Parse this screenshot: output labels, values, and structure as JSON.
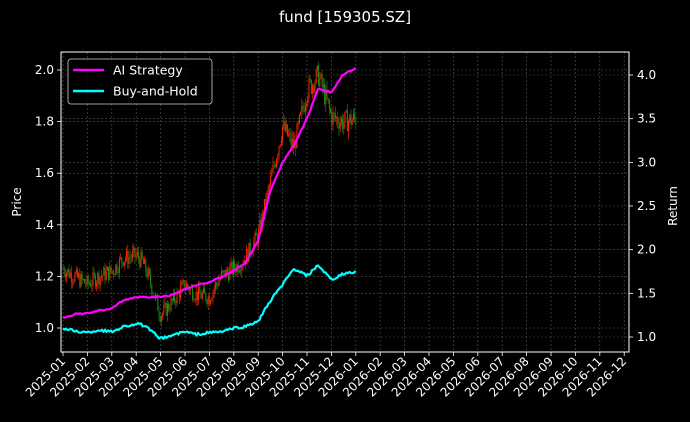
{
  "chart_data": {
    "type": "line",
    "title": "fund [159305.SZ]",
    "xlabel": "",
    "ylabel": "Price",
    "ylabel_right": "Return",
    "ylim": [
      0.91,
      2.07
    ],
    "ylim_right": [
      0.85,
      4.25
    ],
    "grid": true,
    "legend_position": "upper left",
    "x_ticks": [
      "2025-01",
      "2025-02",
      "2025-03",
      "2025-04",
      "2025-05",
      "2025-06",
      "2025-07",
      "2025-08",
      "2025-09",
      "2025-10",
      "2025-11",
      "2025-12",
      "2026-01",
      "2026-02",
      "2026-03",
      "2026-04",
      "2026-05",
      "2026-06",
      "2026-07",
      "2026-08",
      "2026-09",
      "2026-10",
      "2026-11",
      "2026-12"
    ],
    "y_ticks_left": [
      "1.0",
      "1.2",
      "1.4",
      "1.6",
      "1.8",
      "2.0"
    ],
    "y_ticks_right": [
      "1.0",
      "1.5",
      "2.0",
      "2.5",
      "3.0",
      "3.5",
      "4.0"
    ],
    "x": [
      "2025-01",
      "2025-01-15",
      "2025-02",
      "2025-02-15",
      "2025-03",
      "2025-03-15",
      "2025-04",
      "2025-04-08",
      "2025-04-15",
      "2025-05",
      "2025-05-15",
      "2025-06",
      "2025-06-15",
      "2025-07",
      "2025-07-15",
      "2025-08",
      "2025-08-15",
      "2025-09",
      "2025-09-15",
      "2025-10",
      "2025-10-15",
      "2025-11",
      "2025-11-15",
      "2025-12",
      "2025-12-15",
      "2026-01"
    ],
    "price_candles_approx_close": [
      1.23,
      1.2,
      1.17,
      1.2,
      1.22,
      1.27,
      1.28,
      1.26,
      1.21,
      1.05,
      1.1,
      1.17,
      1.13,
      1.12,
      1.2,
      1.23,
      1.27,
      1.36,
      1.55,
      1.78,
      1.7,
      1.92,
      1.98,
      1.82,
      1.8,
      1.81
    ],
    "series": [
      {
        "name": "AI Strategy",
        "axis": "right",
        "color": "#ff00ff",
        "values": [
          1.22,
          1.26,
          1.27,
          1.3,
          1.33,
          1.42,
          1.45,
          1.46,
          1.45,
          1.46,
          1.48,
          1.55,
          1.59,
          1.63,
          1.68,
          1.76,
          1.85,
          2.1,
          2.65,
          3.0,
          3.2,
          3.5,
          3.85,
          3.8,
          4.0,
          4.08
        ]
      },
      {
        "name": "Buy-and-Hold",
        "axis": "right",
        "color": "#00ffff",
        "values": [
          1.1,
          1.07,
          1.05,
          1.08,
          1.06,
          1.12,
          1.15,
          1.14,
          1.1,
          0.98,
          1.02,
          1.06,
          1.03,
          1.05,
          1.06,
          1.1,
          1.12,
          1.18,
          1.4,
          1.6,
          1.78,
          1.7,
          1.82,
          1.65,
          1.72,
          1.75
        ]
      }
    ]
  },
  "legend": {
    "items": [
      {
        "label": "AI Strategy",
        "color": "#ff00ff"
      },
      {
        "label": "Buy-and-Hold",
        "color": "#00ffff"
      }
    ]
  },
  "colors": {
    "background": "#000000",
    "candle_up": "#ff2a00",
    "candle_down": "#1a8c1a",
    "grid": "#555555",
    "axes": "#ffffff"
  }
}
